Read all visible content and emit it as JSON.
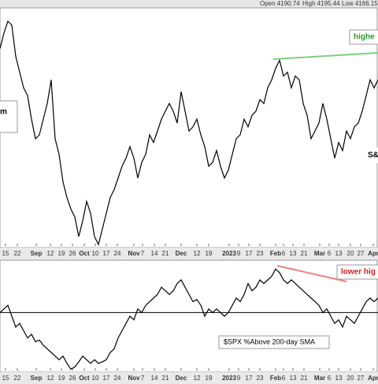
{
  "chart_data": [
    {
      "type": "line",
      "header": [
        "Open 4190.74",
        "High 4195.44",
        "Low 4166.15"
      ],
      "annotations": [
        "highe",
        "m",
        "S&"
      ],
      "color": "#000000",
      "values": [
        4218,
        4270,
        4310,
        4297,
        4191,
        4138,
        4085,
        4059,
        3979,
        3913,
        3926,
        3979,
        4032,
        4112,
        3913,
        3860,
        3767,
        3714,
        3675,
        3648,
        3582,
        3635,
        3701,
        3661,
        3582,
        3555,
        3608,
        3661,
        3714,
        3741,
        3780,
        3820,
        3847,
        3886,
        3847,
        3780,
        3833,
        3860,
        3926,
        3900,
        3939,
        3979,
        4006,
        4032,
        4006,
        3966,
        4072,
        4006,
        3939,
        3953,
        3979,
        3926,
        3886,
        3820,
        3833,
        3873,
        3820,
        3780,
        3807,
        3860,
        3913,
        3926,
        3979,
        3953,
        3992,
        4006,
        4045,
        4032,
        4085,
        4112,
        4151,
        4178,
        4125,
        4138,
        4085,
        4125,
        4112,
        4032,
        3992,
        3913,
        3939,
        3966,
        4032,
        3979,
        3913,
        3847,
        3900,
        3873,
        3939,
        3913,
        3953,
        3966,
        4006,
        4059,
        4112,
        4085,
        4112
      ],
      "xlim": [
        0,
        96
      ],
      "ylim": [
        3550,
        4350
      ],
      "xticks": [
        {
          "value": 1.4,
          "label": "15"
        },
        {
          "value": 4.4,
          "label": "22"
        },
        {
          "value": 9.2,
          "label": "Sep"
        },
        {
          "value": 12.8,
          "label": "12"
        },
        {
          "value": 15.6,
          "label": "19"
        },
        {
          "value": 18.4,
          "label": "26"
        },
        {
          "value": 21.4,
          "label": "Oct"
        },
        {
          "value": 24.2,
          "label": "10"
        },
        {
          "value": 27,
          "label": "17"
        },
        {
          "value": 29.8,
          "label": "24"
        },
        {
          "value": 34,
          "label": "Nov"
        },
        {
          "value": 36.2,
          "label": "7"
        },
        {
          "value": 39.2,
          "label": "14"
        },
        {
          "value": 42,
          "label": "21"
        },
        {
          "value": 46,
          "label": "Dec"
        },
        {
          "value": 50,
          "label": "12"
        },
        {
          "value": 53,
          "label": "19"
        },
        {
          "value": 58.2,
          "label": "2023"
        },
        {
          "value": 60.6,
          "label": "9"
        },
        {
          "value": 63.2,
          "label": "17"
        },
        {
          "value": 66,
          "label": "23"
        },
        {
          "value": 70,
          "label": "Feb"
        },
        {
          "value": 72,
          "label": "6"
        },
        {
          "value": 74.4,
          "label": "13"
        },
        {
          "value": 77.2,
          "label": "21"
        },
        {
          "value": 81.2,
          "label": "Mar"
        },
        {
          "value": 83.6,
          "label": "6"
        },
        {
          "value": 86,
          "label": "13"
        },
        {
          "value": 89,
          "label": "20"
        },
        {
          "value": 91.6,
          "label": "27"
        },
        {
          "value": 94.8,
          "label": "Apr"
        }
      ]
    },
    {
      "type": "line",
      "annotations": [
        "lower hig",
        "$SPX %Above 200-day SMA"
      ],
      "color": "#000000",
      "values": [
        50,
        52.5,
        55,
        47.5,
        40,
        42.5,
        37.5,
        32.5,
        35,
        30,
        31,
        27.5,
        25,
        22.5,
        20,
        17.5,
        20,
        15,
        11,
        12.5,
        16,
        20,
        17.5,
        15,
        17.5,
        15,
        16,
        17.5,
        22.5,
        25,
        32.5,
        37.5,
        42.5,
        47.5,
        45,
        52.5,
        50,
        55,
        57.5,
        60,
        62.5,
        67.5,
        65,
        62.5,
        65,
        70,
        72.5,
        67.5,
        62.5,
        57.5,
        59,
        55,
        47.5,
        52.5,
        50,
        52.5,
        50,
        47.5,
        50,
        55,
        60,
        57.5,
        62.5,
        70,
        65,
        67.5,
        72.5,
        70,
        72.5,
        75,
        80,
        77.5,
        72.5,
        70,
        72.5,
        70,
        67.5,
        65,
        62.5,
        60,
        57.5,
        55,
        50,
        52.5,
        47.5,
        42.5,
        45,
        40,
        47.5,
        45,
        42.5,
        47.5,
        52.5,
        57.5,
        60,
        57.5,
        60
      ],
      "hline": 50,
      "xlim": [
        0,
        96
      ],
      "ylim": [
        10,
        85
      ],
      "xticks": [
        {
          "value": 1.4,
          "label": "15"
        },
        {
          "value": 4.4,
          "label": "22"
        },
        {
          "value": 9.2,
          "label": "Sep"
        },
        {
          "value": 12.8,
          "label": "12"
        },
        {
          "value": 15.6,
          "label": "19"
        },
        {
          "value": 18.4,
          "label": "26"
        },
        {
          "value": 21.4,
          "label": "Oct"
        },
        {
          "value": 24.2,
          "label": "10"
        },
        {
          "value": 27,
          "label": "17"
        },
        {
          "value": 29.8,
          "label": "24"
        },
        {
          "value": 34,
          "label": "Nov"
        },
        {
          "value": 36.2,
          "label": "7"
        },
        {
          "value": 39.2,
          "label": "14"
        },
        {
          "value": 42,
          "label": "21"
        },
        {
          "value": 46,
          "label": "Dec"
        },
        {
          "value": 50,
          "label": "12"
        },
        {
          "value": 53,
          "label": "19"
        },
        {
          "value": 58.2,
          "label": "2023"
        },
        {
          "value": 60.6,
          "label": "9"
        },
        {
          "value": 63.2,
          "label": "17"
        },
        {
          "value": 66,
          "label": "23"
        },
        {
          "value": 70,
          "label": "Feb"
        },
        {
          "value": 72,
          "label": "6"
        },
        {
          "value": 74.4,
          "label": "13"
        },
        {
          "value": 77.2,
          "label": "21"
        },
        {
          "value": 81.2,
          "label": "Mar"
        },
        {
          "value": 83.6,
          "label": "6"
        },
        {
          "value": 86,
          "label": "13"
        },
        {
          "value": 89,
          "label": "20"
        },
        {
          "value": 91.6,
          "label": "27"
        },
        {
          "value": 94.8,
          "label": "Apr"
        }
      ]
    }
  ]
}
